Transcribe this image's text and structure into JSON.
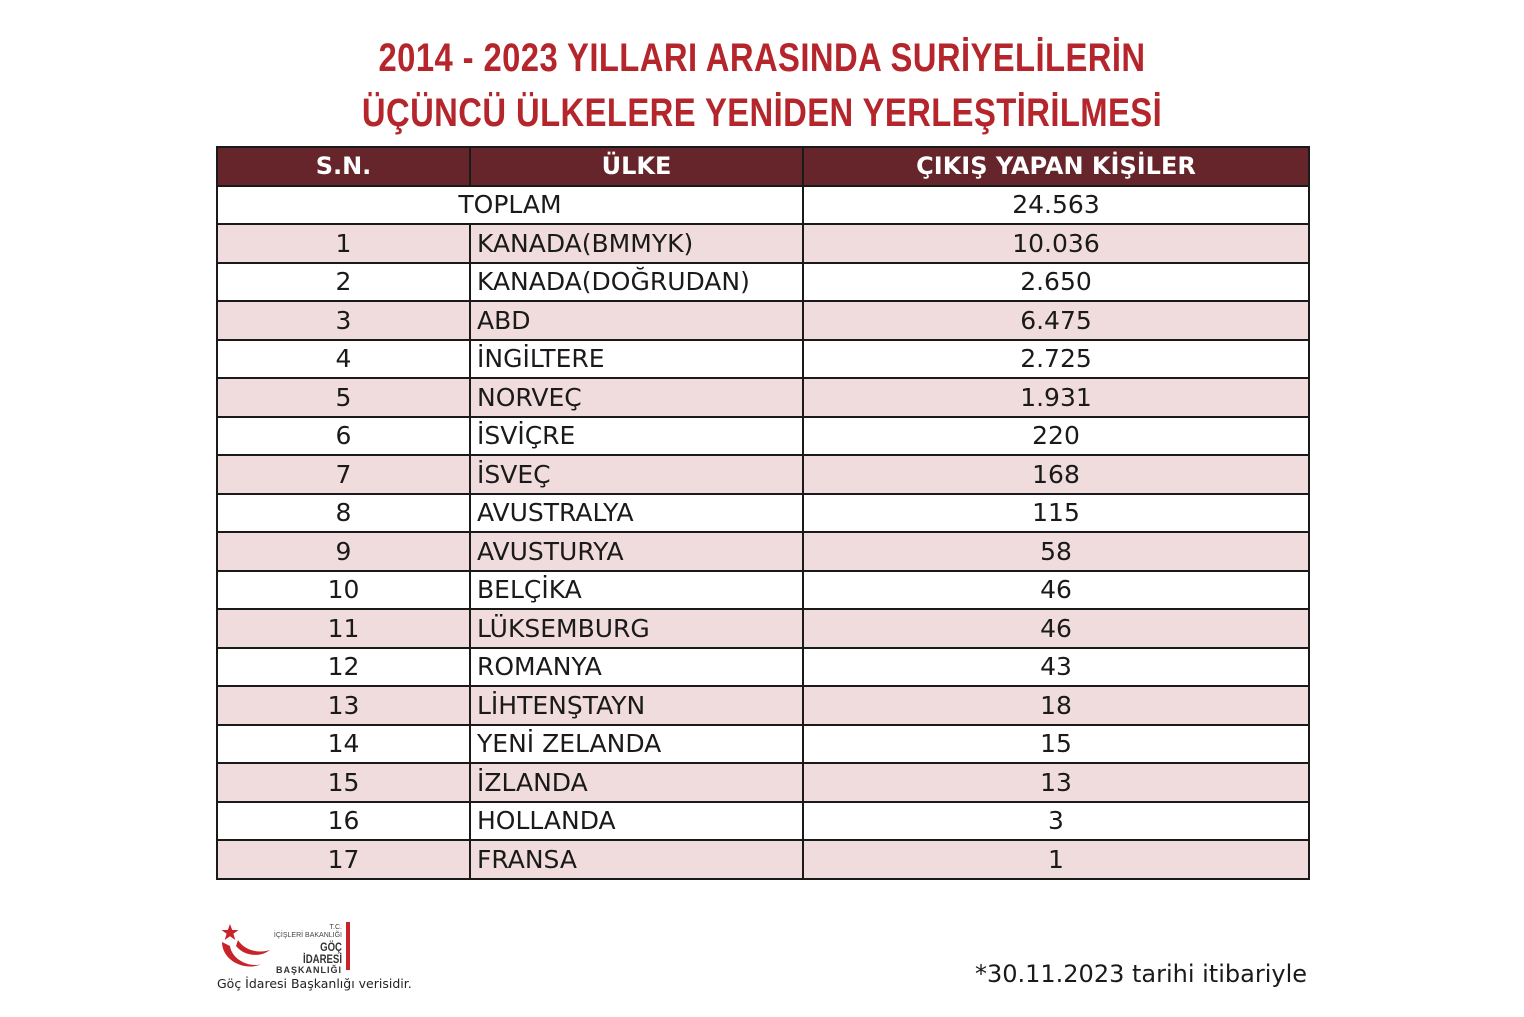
{
  "title": {
    "line1": "2014 - 2023 YILLARI ARASINDA SURİYELİLERİN",
    "line2": "ÜÇÜNCÜ ÜLKELERE YENİDEN YERLEŞTİRİLMESİ"
  },
  "table": {
    "headers": [
      "S.N.",
      "ÜLKE",
      "ÇIKIŞ YAPAN KİŞİLER"
    ],
    "total_label": "TOPLAM",
    "total_value": "24.563",
    "rows": [
      {
        "sn": "1",
        "country": "KANADA(BMMYK)",
        "count": "10.036"
      },
      {
        "sn": "2",
        "country": "KANADA(DOĞRUDAN)",
        "count": "2.650"
      },
      {
        "sn": "3",
        "country": "ABD",
        "count": "6.475"
      },
      {
        "sn": "4",
        "country": "İNGİLTERE",
        "count": "2.725"
      },
      {
        "sn": "5",
        "country": "NORVEÇ",
        "count": "1.931"
      },
      {
        "sn": "6",
        "country": "İSVİÇRE",
        "count": "220"
      },
      {
        "sn": "7",
        "country": "İSVEÇ",
        "count": "168"
      },
      {
        "sn": "8",
        "country": "AVUSTRALYA",
        "count": "115"
      },
      {
        "sn": "9",
        "country": "AVUSTURYA",
        "count": "58"
      },
      {
        "sn": "10",
        "country": "BELÇİKA",
        "count": "46"
      },
      {
        "sn": "11",
        "country": "LÜKSEMBURG",
        "count": "46"
      },
      {
        "sn": "12",
        "country": "ROMANYA",
        "count": "43"
      },
      {
        "sn": "13",
        "country": "LİHTENŞTAYN",
        "count": "18"
      },
      {
        "sn": "14",
        "country": "YENİ ZELANDA",
        "count": "15"
      },
      {
        "sn": "15",
        "country": "İZLANDA",
        "count": "13"
      },
      {
        "sn": "16",
        "country": "HOLLANDA",
        "count": "3"
      },
      {
        "sn": "17",
        "country": "FRANSA",
        "count": "1"
      }
    ]
  },
  "logo": {
    "line1": "T.C.",
    "line2": "İÇİŞLERİ BAKANLIĞI",
    "line3": "GÖÇ İDARESİ",
    "line4": "BAŞKANLIĞI",
    "icon": "crescent-star-logo-icon"
  },
  "footer": {
    "source": "Göç İdaresi Başkanlığı verisidir.",
    "note": "*30.11.2023 tarihi itibariyle"
  },
  "colors": {
    "title": "#b5262c",
    "header_bg": "#66252a",
    "total_text": "#6b2025",
    "row_shade": "#f1dcdd",
    "logo_red": "#c8222a"
  }
}
